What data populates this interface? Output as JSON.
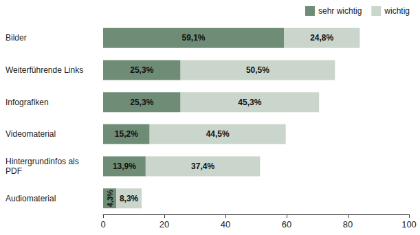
{
  "chart_data": {
    "type": "bar",
    "orientation": "horizontal",
    "stacked": true,
    "data_labels": true,
    "grid": false,
    "legend": "top-right",
    "categories": [
      "Bilder",
      "Weiterführende Links",
      "Infografiken",
      "Videomaterial",
      "Hintergrundinfos als PDF",
      "Audiomaterial"
    ],
    "series": [
      {
        "name": "sehr wichtig",
        "color": "#6f8c76",
        "values": [
          59.1,
          25.3,
          25.3,
          15.2,
          13.9,
          4.3
        ],
        "value_labels": [
          "59,1%",
          "25,3%",
          "25,3%",
          "15,2%",
          "13,9%",
          "4,3%"
        ]
      },
      {
        "name": "wichtig",
        "color": "#cad5cc",
        "values": [
          24.8,
          50.5,
          45.3,
          44.5,
          37.4,
          8.3
        ],
        "value_labels": [
          "24,8%",
          "50,5%",
          "45,3%",
          "44,5%",
          "37,4%",
          "8,3%"
        ]
      }
    ],
    "xlim": [
      0,
      100
    ],
    "xticks": [
      0,
      20,
      40,
      60,
      80,
      100
    ]
  }
}
